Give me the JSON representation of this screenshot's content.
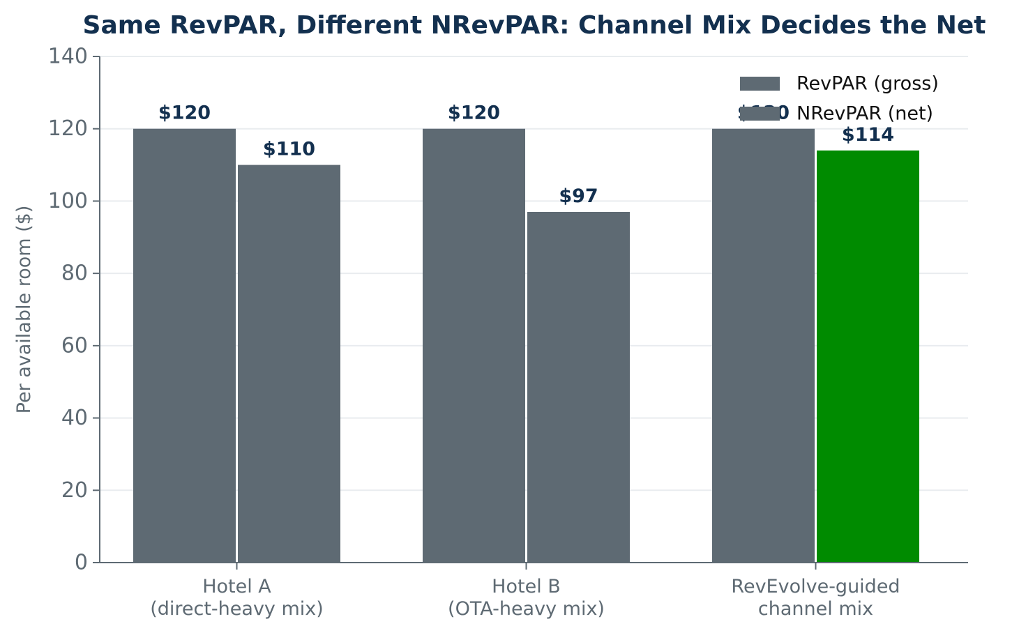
{
  "chart_data": {
    "type": "bar",
    "title": "Same RevPAR, Different NRevPAR: Channel Mix Decides the Net",
    "xlabel": "",
    "ylabel": "Per available room ($)",
    "ylim": [
      0,
      140
    ],
    "yticks": [
      0,
      20,
      40,
      60,
      80,
      100,
      120,
      140
    ],
    "categories": [
      [
        "Hotel A",
        "(direct-heavy mix)"
      ],
      [
        "Hotel B",
        "(OTA-heavy mix)"
      ],
      [
        "RevEvolve-guided",
        "channel mix"
      ]
    ],
    "series": [
      {
        "name": "RevPAR (gross)",
        "values": [
          120,
          120,
          120
        ],
        "labels": [
          "$120",
          "$120",
          "$120"
        ],
        "colors": [
          "#5e6a73",
          "#5e6a73",
          "#5e6a73"
        ]
      },
      {
        "name": "NRevPAR (net)",
        "values": [
          110,
          97,
          114
        ],
        "labels": [
          "$110",
          "$97",
          "$114"
        ],
        "colors": [
          "#5e6a73",
          "#5e6a73",
          "#008b00"
        ]
      }
    ],
    "legend": {
      "position": "top-right",
      "swatch_color": "#5e6a73"
    },
    "grid": "horizontal",
    "colors": {
      "title": "#13304f",
      "data_label": "#13304f",
      "axis": "#5e6a73",
      "tick_text": "#5e6a73",
      "grid": "#e9ecef",
      "legend_text": "#111111",
      "background": "#ffffff"
    }
  }
}
